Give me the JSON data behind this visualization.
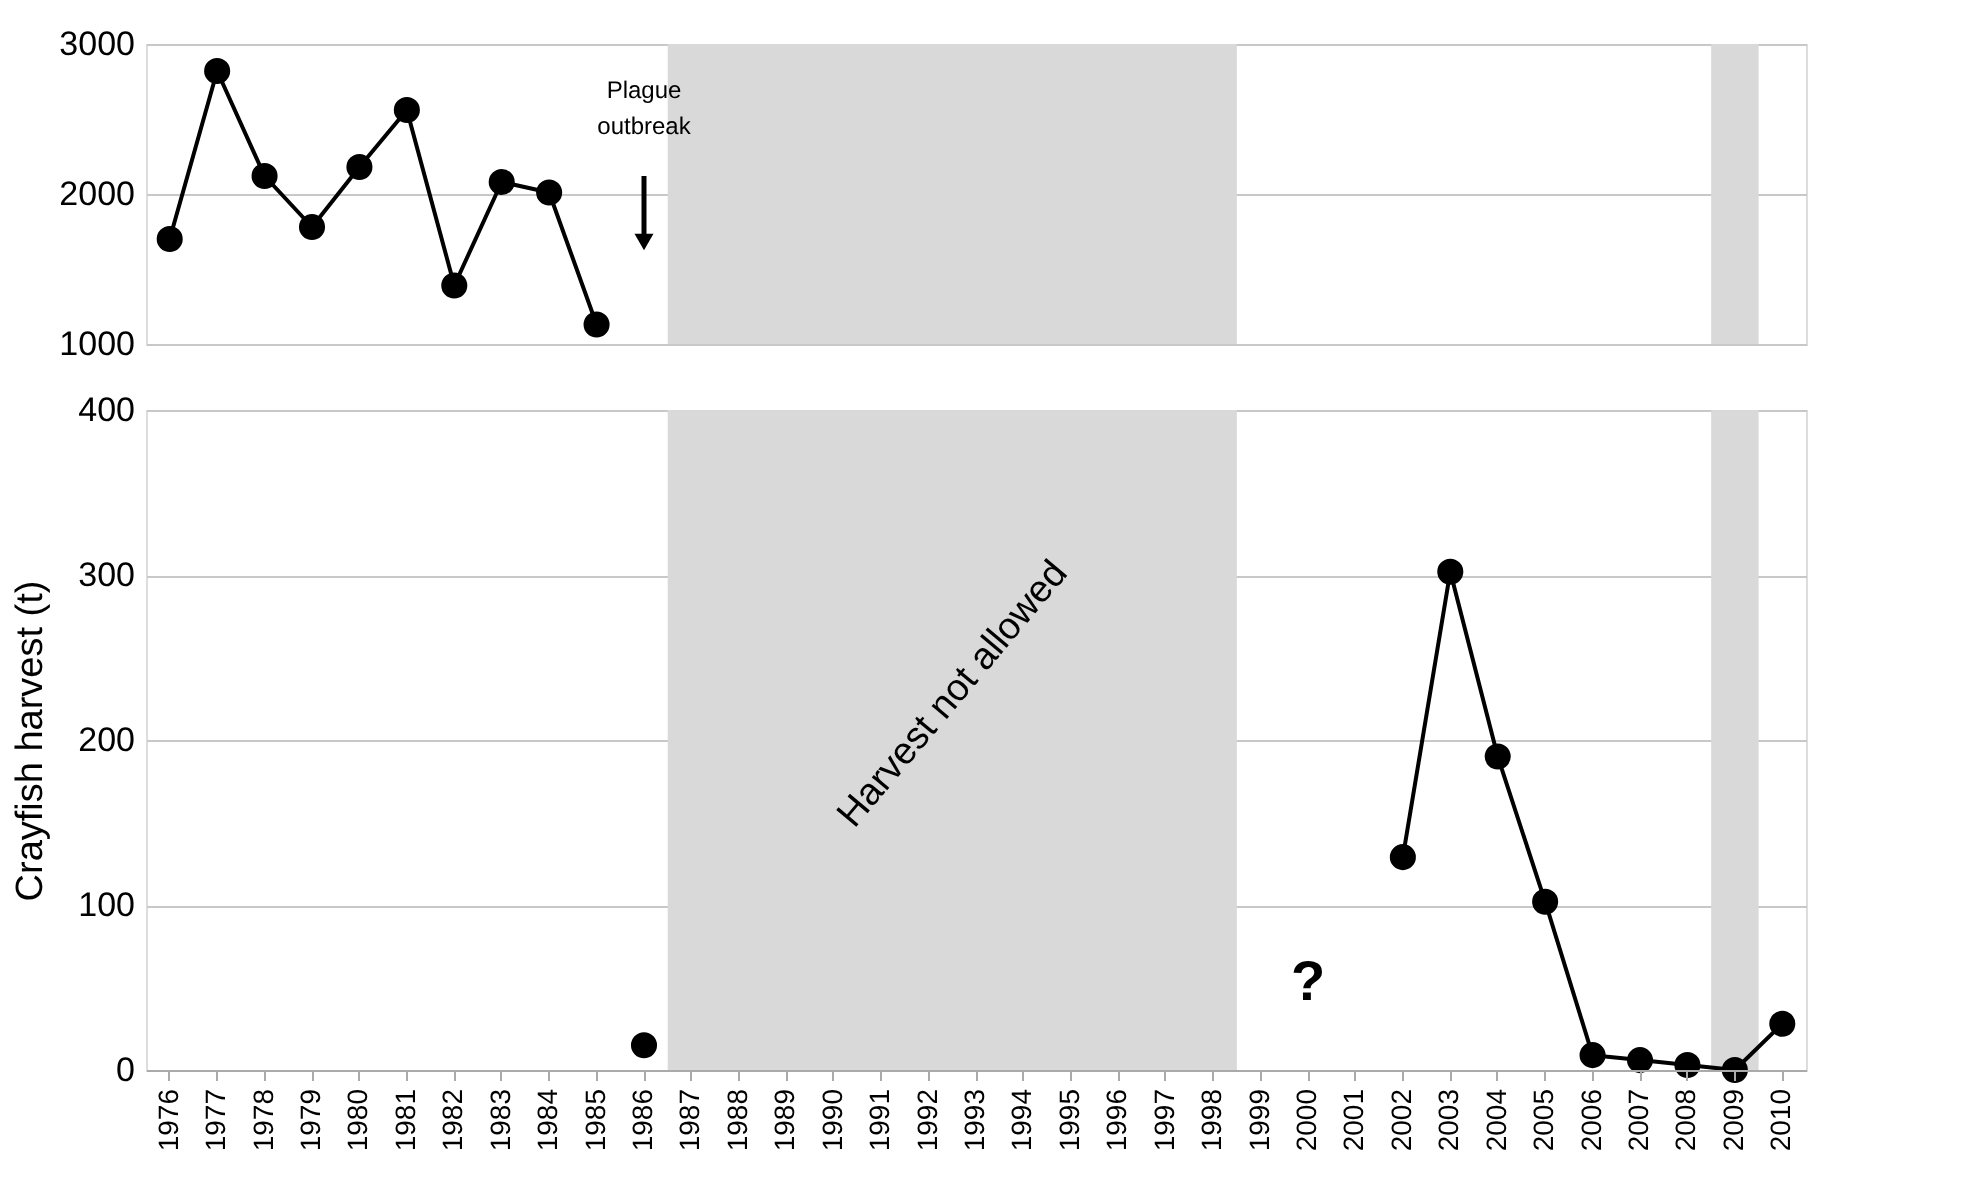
{
  "chart_data": [
    {
      "type": "line",
      "categories": [
        "1976",
        "1977",
        "1978",
        "1979",
        "1980",
        "1981",
        "1982",
        "1983",
        "1984",
        "1985",
        "1986",
        "1987",
        "1988",
        "1989",
        "1990",
        "1991",
        "1992",
        "1993",
        "1994",
        "1995",
        "1996",
        "1997",
        "1998",
        "1999",
        "2000",
        "2001",
        "2002",
        "2003",
        "2004",
        "2005",
        "2006",
        "2007",
        "2008",
        "2009",
        "2010"
      ],
      "series": [
        {
          "color": "#000000",
          "values": [
            1700,
            2820,
            2120,
            1780,
            2180,
            2560,
            1390,
            2080,
            2010,
            1130,
            null,
            null,
            null,
            null,
            null,
            null,
            null,
            null,
            null,
            null,
            null,
            null,
            null,
            null,
            null,
            null,
            null,
            null,
            null,
            null,
            null,
            null,
            null,
            null,
            null
          ]
        }
      ],
      "ylim": [
        1000,
        3000
      ],
      "yticks": [
        1000,
        2000,
        3000
      ],
      "grid": "y",
      "tick_labels": "y",
      "marker": "circle",
      "line_style": "solid",
      "bands": [
        {
          "axis": "x",
          "from": "1987",
          "to": "1998",
          "color": "#d9d9d9"
        },
        {
          "axis": "x",
          "from": "2009",
          "to": "2009",
          "color": "#d9d9d9"
        }
      ],
      "annotations": [
        "Plague outbreak"
      ]
    },
    {
      "type": "line",
      "categories": [
        "1976",
        "1977",
        "1978",
        "1979",
        "1980",
        "1981",
        "1982",
        "1983",
        "1984",
        "1985",
        "1986",
        "1987",
        "1988",
        "1989",
        "1990",
        "1991",
        "1992",
        "1993",
        "1994",
        "1995",
        "1996",
        "1997",
        "1998",
        "1999",
        "2000",
        "2001",
        "2002",
        "2003",
        "2004",
        "2005",
        "2006",
        "2007",
        "2008",
        "2009",
        "2010"
      ],
      "series": [
        {
          "color": "#000000",
          "values": [
            null,
            null,
            null,
            null,
            null,
            null,
            null,
            null,
            null,
            null,
            15,
            null,
            null,
            null,
            null,
            null,
            null,
            null,
            null,
            null,
            null,
            null,
            null,
            null,
            null,
            null,
            129,
            302,
            190,
            102,
            9,
            6,
            3,
            0,
            28
          ]
        }
      ],
      "ylim": [
        0,
        400
      ],
      "yticks": [
        0,
        100,
        200,
        300,
        400
      ],
      "ylabel": "Crayfish harvest (t)",
      "grid": "y",
      "marker": "circle",
      "line_style": "solid",
      "bands": [
        {
          "axis": "x",
          "from": "1987",
          "to": "1998",
          "color": "#d9d9d9",
          "label": "Harvest not allowed"
        },
        {
          "axis": "x",
          "from": "2009",
          "to": "2009",
          "color": "#d9d9d9"
        }
      ],
      "annotations": [
        "?"
      ]
    }
  ]
}
